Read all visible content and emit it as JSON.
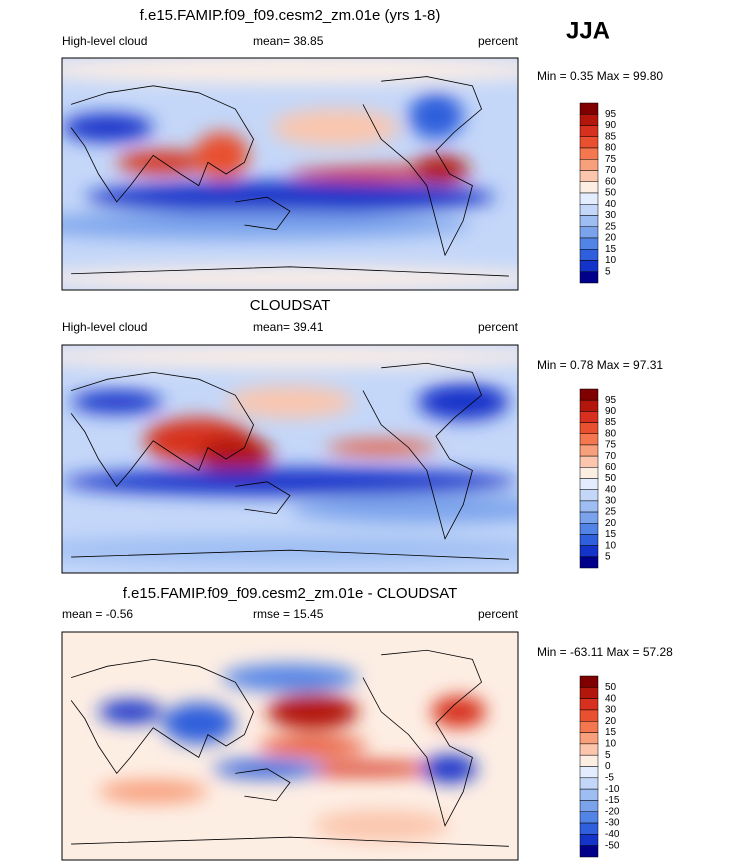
{
  "season": "JJA",
  "colorbar_colors": [
    "#7f0000",
    "#b3160a",
    "#d7301f",
    "#e8502f",
    "#f4774f",
    "#f89f7c",
    "#fbc6ad",
    "#fdeee4",
    "#e3edff",
    "#c4d7f9",
    "#9dbdf3",
    "#7aa3ec",
    "#5284e6",
    "#2f5fdc",
    "#1333c9",
    "#00008a"
  ],
  "panels": [
    {
      "title": "f.e15.FAMIP.f09_f09.cesm2_zm.01e (yrs 1-8)",
      "left": "High-level cloud",
      "center": "mean=  38.85",
      "right": "percent",
      "minmax": "Min =   0.35 Max =  99.80",
      "colorbar_labels": [
        95,
        90,
        85,
        80,
        75,
        70,
        60,
        50,
        40,
        30,
        25,
        20,
        15,
        10,
        5
      ]
    },
    {
      "title": "CLOUDSAT",
      "left": "High-level cloud",
      "center": "mean=  39.41",
      "right": "percent",
      "minmax": "Min =   0.78 Max =  97.31",
      "colorbar_labels": [
        95,
        90,
        85,
        80,
        75,
        70,
        60,
        50,
        40,
        30,
        25,
        20,
        15,
        10,
        5
      ]
    },
    {
      "title": "f.e15.FAMIP.f09_f09.cesm2_zm.01e - CLOUDSAT",
      "left": "mean =  -0.56",
      "center": "rmse =  15.45",
      "right": "percent",
      "minmax": "Min = -63.11 Max =  57.28",
      "colorbar_labels": [
        50,
        40,
        30,
        20,
        15,
        10,
        5,
        0,
        -5,
        -10,
        -15,
        -20,
        -30,
        -40,
        -50
      ]
    }
  ]
}
